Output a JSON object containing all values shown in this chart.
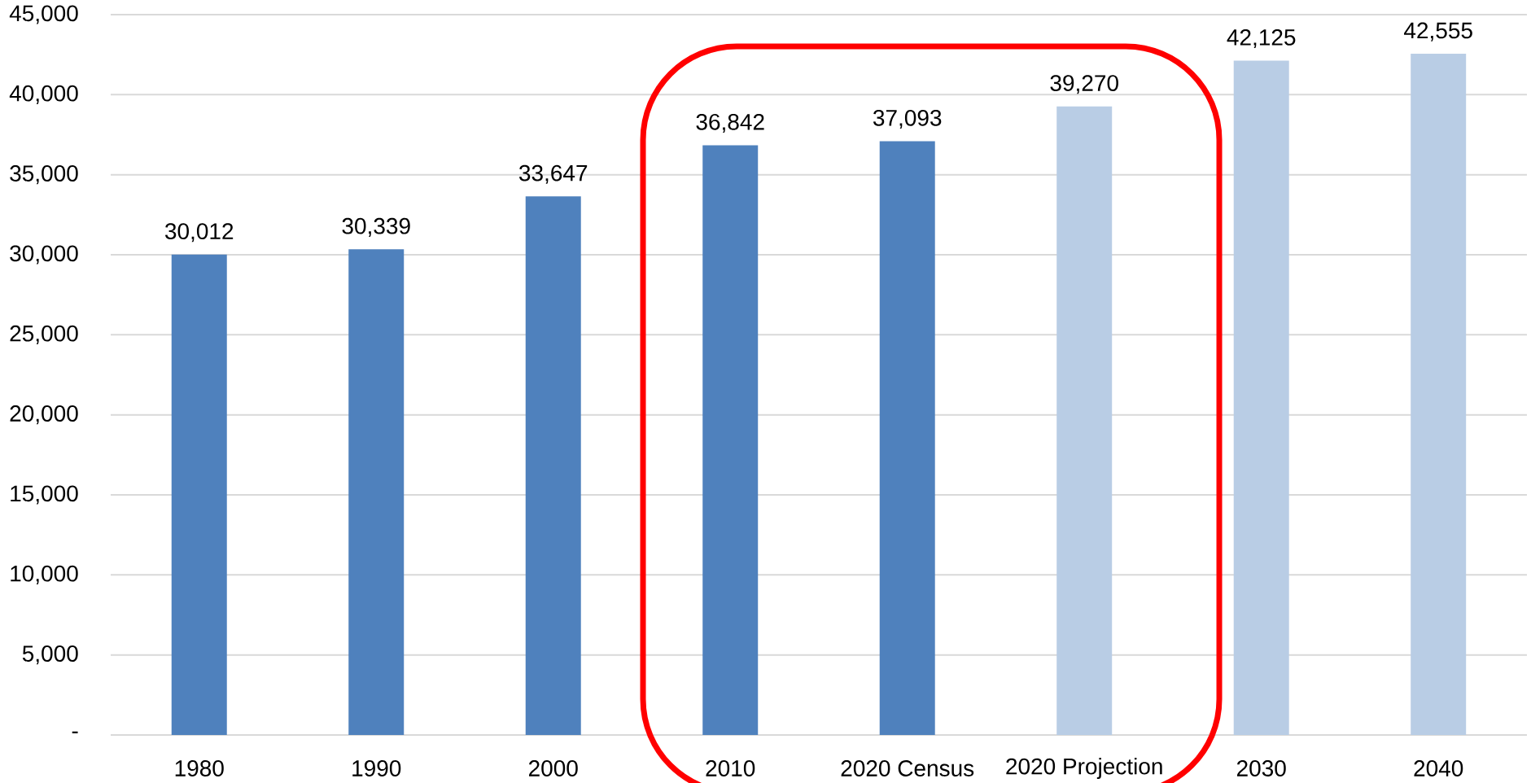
{
  "chart_data": {
    "type": "bar",
    "categories": [
      "1980",
      "1990",
      "2000",
      "2010",
      "2020 Census",
      "2020 Projection",
      "2030",
      "2040"
    ],
    "values": [
      30012,
      30339,
      33647,
      36842,
      37093,
      39270,
      42125,
      42555
    ],
    "colors": [
      "#4f81bd",
      "#4f81bd",
      "#4f81bd",
      "#4f81bd",
      "#4f81bd",
      "#b9cde5",
      "#b9cde5",
      "#b9cde5"
    ],
    "value_labels": [
      "30,012",
      "30,339",
      "33,647",
      "36,842",
      "37,093",
      "39,270",
      "42,125",
      "42,555"
    ],
    "ylim": [
      0,
      45000
    ],
    "yticks": [
      {
        "value": 0,
        "label": "-"
      },
      {
        "value": 5000,
        "label": "5,000"
      },
      {
        "value": 10000,
        "label": "10,000"
      },
      {
        "value": 15000,
        "label": "15,000"
      },
      {
        "value": 20000,
        "label": "20,000"
      },
      {
        "value": 25000,
        "label": "25,000"
      },
      {
        "value": 30000,
        "label": "30,000"
      },
      {
        "value": 35000,
        "label": "35,000"
      },
      {
        "value": 40000,
        "label": "40,000"
      },
      {
        "value": 45000,
        "label": "45,000"
      }
    ],
    "grid": "y"
  }
}
